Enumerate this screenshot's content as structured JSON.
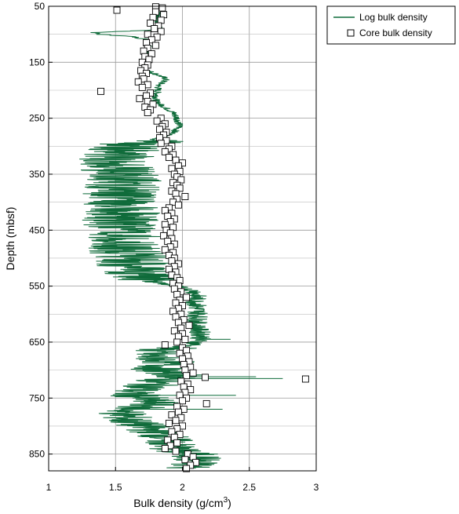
{
  "chart_data": {
    "type": "scatter",
    "xlabel": "Bulk density (g/cm",
    "xlabel_superscript": "3",
    "xlabel_suffix": ")",
    "ylabel": "Depth (mbsf)",
    "xlim": [
      1,
      3
    ],
    "ylim": [
      50,
      880
    ],
    "y_inverted": true,
    "grid": true,
    "x_ticks": [
      1,
      1.5,
      2,
      2.5,
      3
    ],
    "x_tick_labels": [
      "1",
      "1.5",
      "2",
      "2.5",
      "3"
    ],
    "y_ticks": [
      50,
      150,
      250,
      350,
      450,
      550,
      650,
      750,
      850
    ],
    "y_tick_labels": [
      "50",
      "150",
      "250",
      "350",
      "450",
      "550",
      "650",
      "750",
      "850"
    ],
    "legend_position": "outside-top-right",
    "series": [
      {
        "name": "Log bulk density",
        "style": "line",
        "color": "#0f6b3a",
        "anchors": [
          [
            50,
            1.82
          ],
          [
            80,
            1.82
          ],
          [
            92,
            1.82
          ],
          [
            97,
            1.34
          ],
          [
            100,
            1.38
          ],
          [
            104,
            1.62
          ],
          [
            110,
            1.75
          ],
          [
            130,
            1.74
          ],
          [
            150,
            1.73
          ],
          [
            165,
            1.74
          ],
          [
            175,
            1.84
          ],
          [
            180,
            1.88
          ],
          [
            192,
            1.82
          ],
          [
            220,
            1.8
          ],
          [
            240,
            1.93
          ],
          [
            250,
            1.96
          ],
          [
            265,
            1.98
          ],
          [
            278,
            1.92
          ],
          [
            290,
            1.76
          ],
          [
            300,
            1.5
          ],
          [
            320,
            1.45
          ],
          [
            340,
            1.45
          ],
          [
            360,
            1.5
          ],
          [
            380,
            1.48
          ],
          [
            400,
            1.45
          ],
          [
            420,
            1.5
          ],
          [
            440,
            1.45
          ],
          [
            460,
            1.48
          ],
          [
            480,
            1.5
          ],
          [
            500,
            1.55
          ],
          [
            520,
            1.58
          ],
          [
            535,
            1.62
          ],
          [
            545,
            1.85
          ],
          [
            560,
            2.1
          ],
          [
            580,
            2.1
          ],
          [
            600,
            2.12
          ],
          [
            620,
            2.1
          ],
          [
            640,
            2.15
          ],
          [
            655,
            2.08
          ],
          [
            665,
            1.8
          ],
          [
            675,
            1.75
          ],
          [
            685,
            1.9
          ],
          [
            700,
            1.8
          ],
          [
            710,
            2.0
          ],
          [
            720,
            1.8
          ],
          [
            730,
            1.75
          ],
          [
            740,
            1.6
          ],
          [
            750,
            1.7
          ],
          [
            760,
            1.8
          ],
          [
            775,
            1.55
          ],
          [
            790,
            1.6
          ],
          [
            800,
            1.7
          ],
          [
            815,
            1.85
          ],
          [
            830,
            1.9
          ],
          [
            845,
            1.95
          ],
          [
            852,
            2.12
          ],
          [
            860,
            2.1
          ],
          [
            875,
            2.05
          ]
        ]
      },
      {
        "name": "Core bulk density",
        "style": "markers",
        "marker": "open-square",
        "points": [
          [
            1.8,
            51
          ],
          [
            1.85,
            53
          ],
          [
            1.51,
            57
          ],
          [
            1.8,
            60
          ],
          [
            1.86,
            65
          ],
          [
            1.78,
            70
          ],
          [
            1.84,
            75
          ],
          [
            1.76,
            80
          ],
          [
            1.82,
            85
          ],
          [
            1.79,
            90
          ],
          [
            1.84,
            95
          ],
          [
            1.74,
            100
          ],
          [
            1.81,
            105
          ],
          [
            1.77,
            110
          ],
          [
            1.73,
            115
          ],
          [
            1.8,
            120
          ],
          [
            1.74,
            125
          ],
          [
            1.71,
            130
          ],
          [
            1.77,
            135
          ],
          [
            1.72,
            140
          ],
          [
            1.75,
            145
          ],
          [
            1.7,
            150
          ],
          [
            1.74,
            155
          ],
          [
            1.72,
            160
          ],
          [
            1.69,
            165
          ],
          [
            1.73,
            170
          ],
          [
            1.7,
            175
          ],
          [
            1.71,
            180
          ],
          [
            1.67,
            185
          ],
          [
            1.74,
            190
          ],
          [
            1.7,
            195
          ],
          [
            1.39,
            202
          ],
          [
            1.76,
            205
          ],
          [
            1.73,
            210
          ],
          [
            1.68,
            215
          ],
          [
            1.74,
            220
          ],
          [
            1.78,
            225
          ],
          [
            1.72,
            230
          ],
          [
            1.76,
            235
          ],
          [
            1.74,
            240
          ],
          [
            1.84,
            250
          ],
          [
            1.81,
            255
          ],
          [
            1.87,
            260
          ],
          [
            1.85,
            265
          ],
          [
            1.83,
            270
          ],
          [
            1.88,
            275
          ],
          [
            1.86,
            280
          ],
          [
            1.83,
            285
          ],
          [
            1.88,
            290
          ],
          [
            1.84,
            295
          ],
          [
            1.92,
            300
          ],
          [
            1.9,
            305
          ],
          [
            1.87,
            310
          ],
          [
            1.93,
            315
          ],
          [
            1.9,
            320
          ],
          [
            1.95,
            325
          ],
          [
            2.0,
            330
          ],
          [
            1.97,
            335
          ],
          [
            1.92,
            340
          ],
          [
            1.98,
            345
          ],
          [
            1.94,
            350
          ],
          [
            1.96,
            355
          ],
          [
            1.99,
            360
          ],
          [
            1.93,
            365
          ],
          [
            1.96,
            370
          ],
          [
            1.98,
            375
          ],
          [
            1.92,
            380
          ],
          [
            1.95,
            385
          ],
          [
            2.02,
            390
          ],
          [
            1.96,
            395
          ],
          [
            1.93,
            400
          ],
          [
            1.97,
            405
          ],
          [
            1.9,
            410
          ],
          [
            1.87,
            415
          ],
          [
            1.92,
            420
          ],
          [
            1.89,
            425
          ],
          [
            1.94,
            430
          ],
          [
            1.91,
            435
          ],
          [
            1.87,
            440
          ],
          [
            1.93,
            445
          ],
          [
            1.88,
            450
          ],
          [
            1.91,
            455
          ],
          [
            1.86,
            460
          ],
          [
            1.92,
            465
          ],
          [
            1.89,
            470
          ],
          [
            1.94,
            475
          ],
          [
            1.91,
            480
          ],
          [
            1.87,
            485
          ],
          [
            1.93,
            490
          ],
          [
            1.9,
            495
          ],
          [
            1.94,
            500
          ],
          [
            1.92,
            505
          ],
          [
            1.97,
            510
          ],
          [
            1.94,
            515
          ],
          [
            1.9,
            520
          ],
          [
            1.95,
            525
          ],
          [
            1.92,
            530
          ],
          [
            1.96,
            535
          ],
          [
            1.98,
            540
          ],
          [
            1.93,
            545
          ],
          [
            1.97,
            550
          ],
          [
            1.94,
            555
          ],
          [
            1.99,
            560
          ],
          [
            1.96,
            565
          ],
          [
            2.03,
            570
          ],
          [
            1.98,
            575
          ],
          [
            1.95,
            580
          ],
          [
            2.0,
            585
          ],
          [
            1.97,
            590
          ],
          [
            1.93,
            595
          ],
          [
            1.99,
            600
          ],
          [
            1.95,
            605
          ],
          [
            2.01,
            610
          ],
          [
            1.97,
            615
          ],
          [
            2.05,
            620
          ],
          [
            1.99,
            625
          ],
          [
            1.94,
            630
          ],
          [
            2.0,
            635
          ],
          [
            1.97,
            640
          ],
          [
            2.02,
            645
          ],
          [
            1.96,
            650
          ],
          [
            1.87,
            655
          ],
          [
            2.0,
            660
          ],
          [
            2.03,
            665
          ],
          [
            1.98,
            670
          ],
          [
            2.04,
            675
          ],
          [
            2.0,
            680
          ],
          [
            2.05,
            685
          ],
          [
            2.01,
            690
          ],
          [
            2.06,
            695
          ],
          [
            2.02,
            700
          ],
          [
            2.08,
            705
          ],
          [
            2.03,
            710
          ],
          [
            2.17,
            713
          ],
          [
            2.92,
            716
          ],
          [
            1.99,
            720
          ],
          [
            2.04,
            725
          ],
          [
            2.01,
            730
          ],
          [
            2.06,
            735
          ],
          [
            2.02,
            740
          ],
          [
            1.98,
            745
          ],
          [
            2.03,
            750
          ],
          [
            2.0,
            755
          ],
          [
            2.18,
            760
          ],
          [
            1.96,
            765
          ],
          [
            2.01,
            770
          ],
          [
            1.97,
            775
          ],
          [
            1.92,
            780
          ],
          [
            1.99,
            785
          ],
          [
            1.95,
            790
          ],
          [
            1.9,
            795
          ],
          [
            2.0,
            800
          ],
          [
            1.96,
            805
          ],
          [
            1.92,
            810
          ],
          [
            1.98,
            815
          ],
          [
            1.94,
            820
          ],
          [
            1.89,
            825
          ],
          [
            1.96,
            830
          ],
          [
            1.91,
            835
          ],
          [
            1.87,
            840
          ],
          [
            1.95,
            845
          ],
          [
            2.04,
            850
          ],
          [
            2.08,
            855
          ],
          [
            2.02,
            860
          ],
          [
            2.1,
            865
          ],
          [
            2.06,
            870
          ],
          [
            2.03,
            876
          ]
        ]
      }
    ]
  }
}
